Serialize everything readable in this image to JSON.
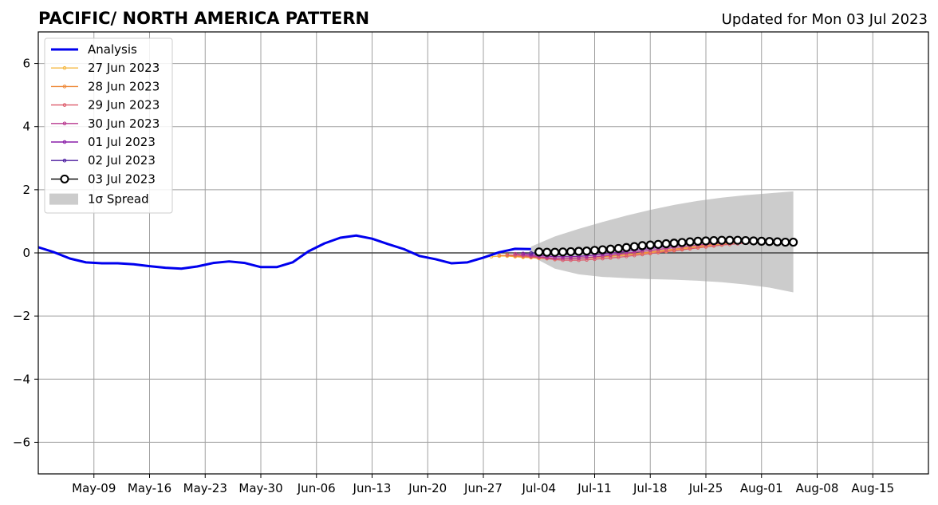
{
  "chart_data": {
    "type": "line",
    "title": "PACIFIC/ NORTH AMERICA PATTERN",
    "subtitle": "Updated for Mon 03 Jul 2023",
    "xlabel": "",
    "ylabel": "",
    "xlim": [
      "2023-05-02",
      "2023-08-22"
    ],
    "ylim": [
      -7,
      7
    ],
    "yticks": [
      -6,
      -4,
      -2,
      0,
      2,
      4,
      6
    ],
    "ytick_labels": [
      "−6",
      "−4",
      "−2",
      "0",
      "2",
      "4",
      "6"
    ],
    "xticks": [
      "2023-05-09",
      "2023-05-16",
      "2023-05-23",
      "2023-05-30",
      "2023-06-06",
      "2023-06-13",
      "2023-06-20",
      "2023-06-27",
      "2023-07-04",
      "2023-07-11",
      "2023-07-18",
      "2023-07-25",
      "2023-08-01",
      "2023-08-08",
      "2023-08-15"
    ],
    "xtick_labels": [
      "May-09",
      "May-16",
      "May-23",
      "May-30",
      "Jun-06",
      "Jun-13",
      "Jun-20",
      "Jun-27",
      "Jul-04",
      "Jul-11",
      "Jul-18",
      "Jul-25",
      "Aug-01",
      "Aug-08",
      "Aug-15"
    ],
    "grid": true,
    "legend_position": "upper-left",
    "colors": {
      "analysis": "#0000ee",
      "spread": "#cccccc",
      "zero_line": "#444444",
      "grid": "#a0a0a0"
    },
    "spread": {
      "name": "1σ Spread",
      "x": [
        "2023-07-03",
        "2023-07-06",
        "2023-07-09",
        "2023-07-12",
        "2023-07-15",
        "2023-07-18",
        "2023-07-21",
        "2023-07-24",
        "2023-07-27",
        "2023-07-30",
        "2023-08-02",
        "2023-08-05"
      ],
      "upper": [
        0.2,
        0.52,
        0.76,
        0.98,
        1.18,
        1.36,
        1.52,
        1.65,
        1.75,
        1.83,
        1.89,
        1.95
      ],
      "lower": [
        -0.1,
        -0.5,
        -0.68,
        -0.76,
        -0.8,
        -0.83,
        -0.85,
        -0.88,
        -0.93,
        -1.0,
        -1.1,
        -1.25
      ]
    },
    "series": [
      {
        "name": "Analysis",
        "color": "#0000ee",
        "x": [
          "2023-05-02",
          "2023-05-04",
          "2023-05-06",
          "2023-05-08",
          "2023-05-10",
          "2023-05-12",
          "2023-05-14",
          "2023-05-16",
          "2023-05-18",
          "2023-05-20",
          "2023-05-22",
          "2023-05-24",
          "2023-05-26",
          "2023-05-28",
          "2023-05-30",
          "2023-06-01",
          "2023-06-03",
          "2023-06-05",
          "2023-06-07",
          "2023-06-09",
          "2023-06-11",
          "2023-06-13",
          "2023-06-15",
          "2023-06-17",
          "2023-06-19",
          "2023-06-21",
          "2023-06-23",
          "2023-06-25",
          "2023-06-27",
          "2023-06-29",
          "2023-07-01",
          "2023-07-03"
        ],
        "values": [
          0.18,
          0.02,
          -0.18,
          -0.3,
          -0.33,
          -0.33,
          -0.36,
          -0.42,
          -0.47,
          -0.5,
          -0.43,
          -0.32,
          -0.27,
          -0.32,
          -0.45,
          -0.45,
          -0.3,
          0.05,
          0.3,
          0.48,
          0.55,
          0.45,
          0.28,
          0.12,
          -0.1,
          -0.2,
          -0.33,
          -0.3,
          -0.15,
          0.02,
          0.13,
          0.12
        ]
      },
      {
        "name": "27 Jun 2023",
        "color": "#f5b841",
        "x0": "2023-06-28",
        "values": [
          -0.12,
          -0.1,
          -0.1,
          -0.12,
          -0.14,
          -0.15,
          -0.17,
          -0.18,
          -0.18,
          -0.18,
          -0.18,
          -0.17,
          -0.16,
          -0.15,
          -0.13,
          -0.11,
          -0.09,
          -0.07,
          -0.04,
          -0.02,
          0.0,
          0.03,
          0.06,
          0.09,
          0.12,
          0.15,
          0.18,
          0.21,
          0.24,
          0.27,
          0.3,
          0.33,
          0.35
        ]
      },
      {
        "name": "28 Jun 2023",
        "color": "#ee8a3c",
        "x0": "2023-06-29",
        "values": [
          -0.08,
          -0.08,
          -0.1,
          -0.12,
          -0.14,
          -0.16,
          -0.17,
          -0.18,
          -0.18,
          -0.17,
          -0.16,
          -0.15,
          -0.13,
          -0.12,
          -0.1,
          -0.08,
          -0.05,
          -0.03,
          0.0,
          0.03,
          0.06,
          0.09,
          0.12,
          0.15,
          0.18,
          0.21,
          0.24,
          0.27,
          0.3,
          0.32,
          0.34,
          0.36,
          0.37
        ]
      },
      {
        "name": "29 Jun 2023",
        "color": "#dd5a6a",
        "x0": "2023-06-30",
        "values": [
          -0.06,
          -0.07,
          -0.09,
          -0.12,
          -0.15,
          -0.18,
          -0.21,
          -0.23,
          -0.23,
          -0.23,
          -0.22,
          -0.2,
          -0.18,
          -0.16,
          -0.14,
          -0.11,
          -0.08,
          -0.05,
          -0.02,
          0.01,
          0.04,
          0.07,
          0.1,
          0.13,
          0.16,
          0.19,
          0.22,
          0.25,
          0.27,
          0.29,
          0.31,
          0.32,
          0.33
        ]
      },
      {
        "name": "30 Jun 2023",
        "color": "#b8388f",
        "x0": "2023-07-01",
        "values": [
          -0.03,
          -0.06,
          -0.09,
          -0.12,
          -0.15,
          -0.17,
          -0.18,
          -0.18,
          -0.17,
          -0.15,
          -0.13,
          -0.1,
          -0.07,
          -0.04,
          -0.01,
          0.02,
          0.05,
          0.08,
          0.11,
          0.14,
          0.17,
          0.2,
          0.23,
          0.25,
          0.27,
          0.29,
          0.31,
          0.33,
          0.34,
          0.35,
          0.36,
          0.37,
          0.38
        ]
      },
      {
        "name": "01 Jul 2023",
        "color": "#8a1fa8",
        "x0": "2023-07-02",
        "values": [
          -0.02,
          -0.05,
          -0.08,
          -0.1,
          -0.12,
          -0.12,
          -0.12,
          -0.11,
          -0.09,
          -0.07,
          -0.04,
          -0.01,
          0.02,
          0.05,
          0.08,
          0.11,
          0.14,
          0.17,
          0.2,
          0.23,
          0.26,
          0.29,
          0.31,
          0.33,
          0.35,
          0.36,
          0.37,
          0.38,
          0.38,
          0.38,
          0.38,
          0.38,
          0.37
        ]
      },
      {
        "name": "02 Jul 2023",
        "color": "#4a1a9e",
        "x0": "2023-07-03",
        "values": [
          0.0,
          -0.02,
          -0.04,
          -0.05,
          -0.05,
          -0.04,
          -0.02,
          0.0,
          0.03,
          0.06,
          0.09,
          0.12,
          0.15,
          0.18,
          0.21,
          0.24,
          0.26,
          0.28,
          0.3,
          0.32,
          0.34,
          0.35,
          0.36,
          0.37,
          0.38,
          0.38,
          0.38,
          0.38,
          0.38,
          0.37,
          0.36,
          0.35,
          0.34
        ]
      },
      {
        "name": "03 Jul 2023",
        "color": "#000000",
        "x0": "2023-07-04",
        "values": [
          0.03,
          0.02,
          0.02,
          0.03,
          0.04,
          0.05,
          0.06,
          0.08,
          0.1,
          0.12,
          0.14,
          0.17,
          0.2,
          0.23,
          0.25,
          0.27,
          0.29,
          0.31,
          0.33,
          0.35,
          0.37,
          0.38,
          0.39,
          0.4,
          0.4,
          0.4,
          0.39,
          0.38,
          0.37,
          0.36,
          0.35,
          0.34,
          0.34
        ]
      }
    ]
  }
}
